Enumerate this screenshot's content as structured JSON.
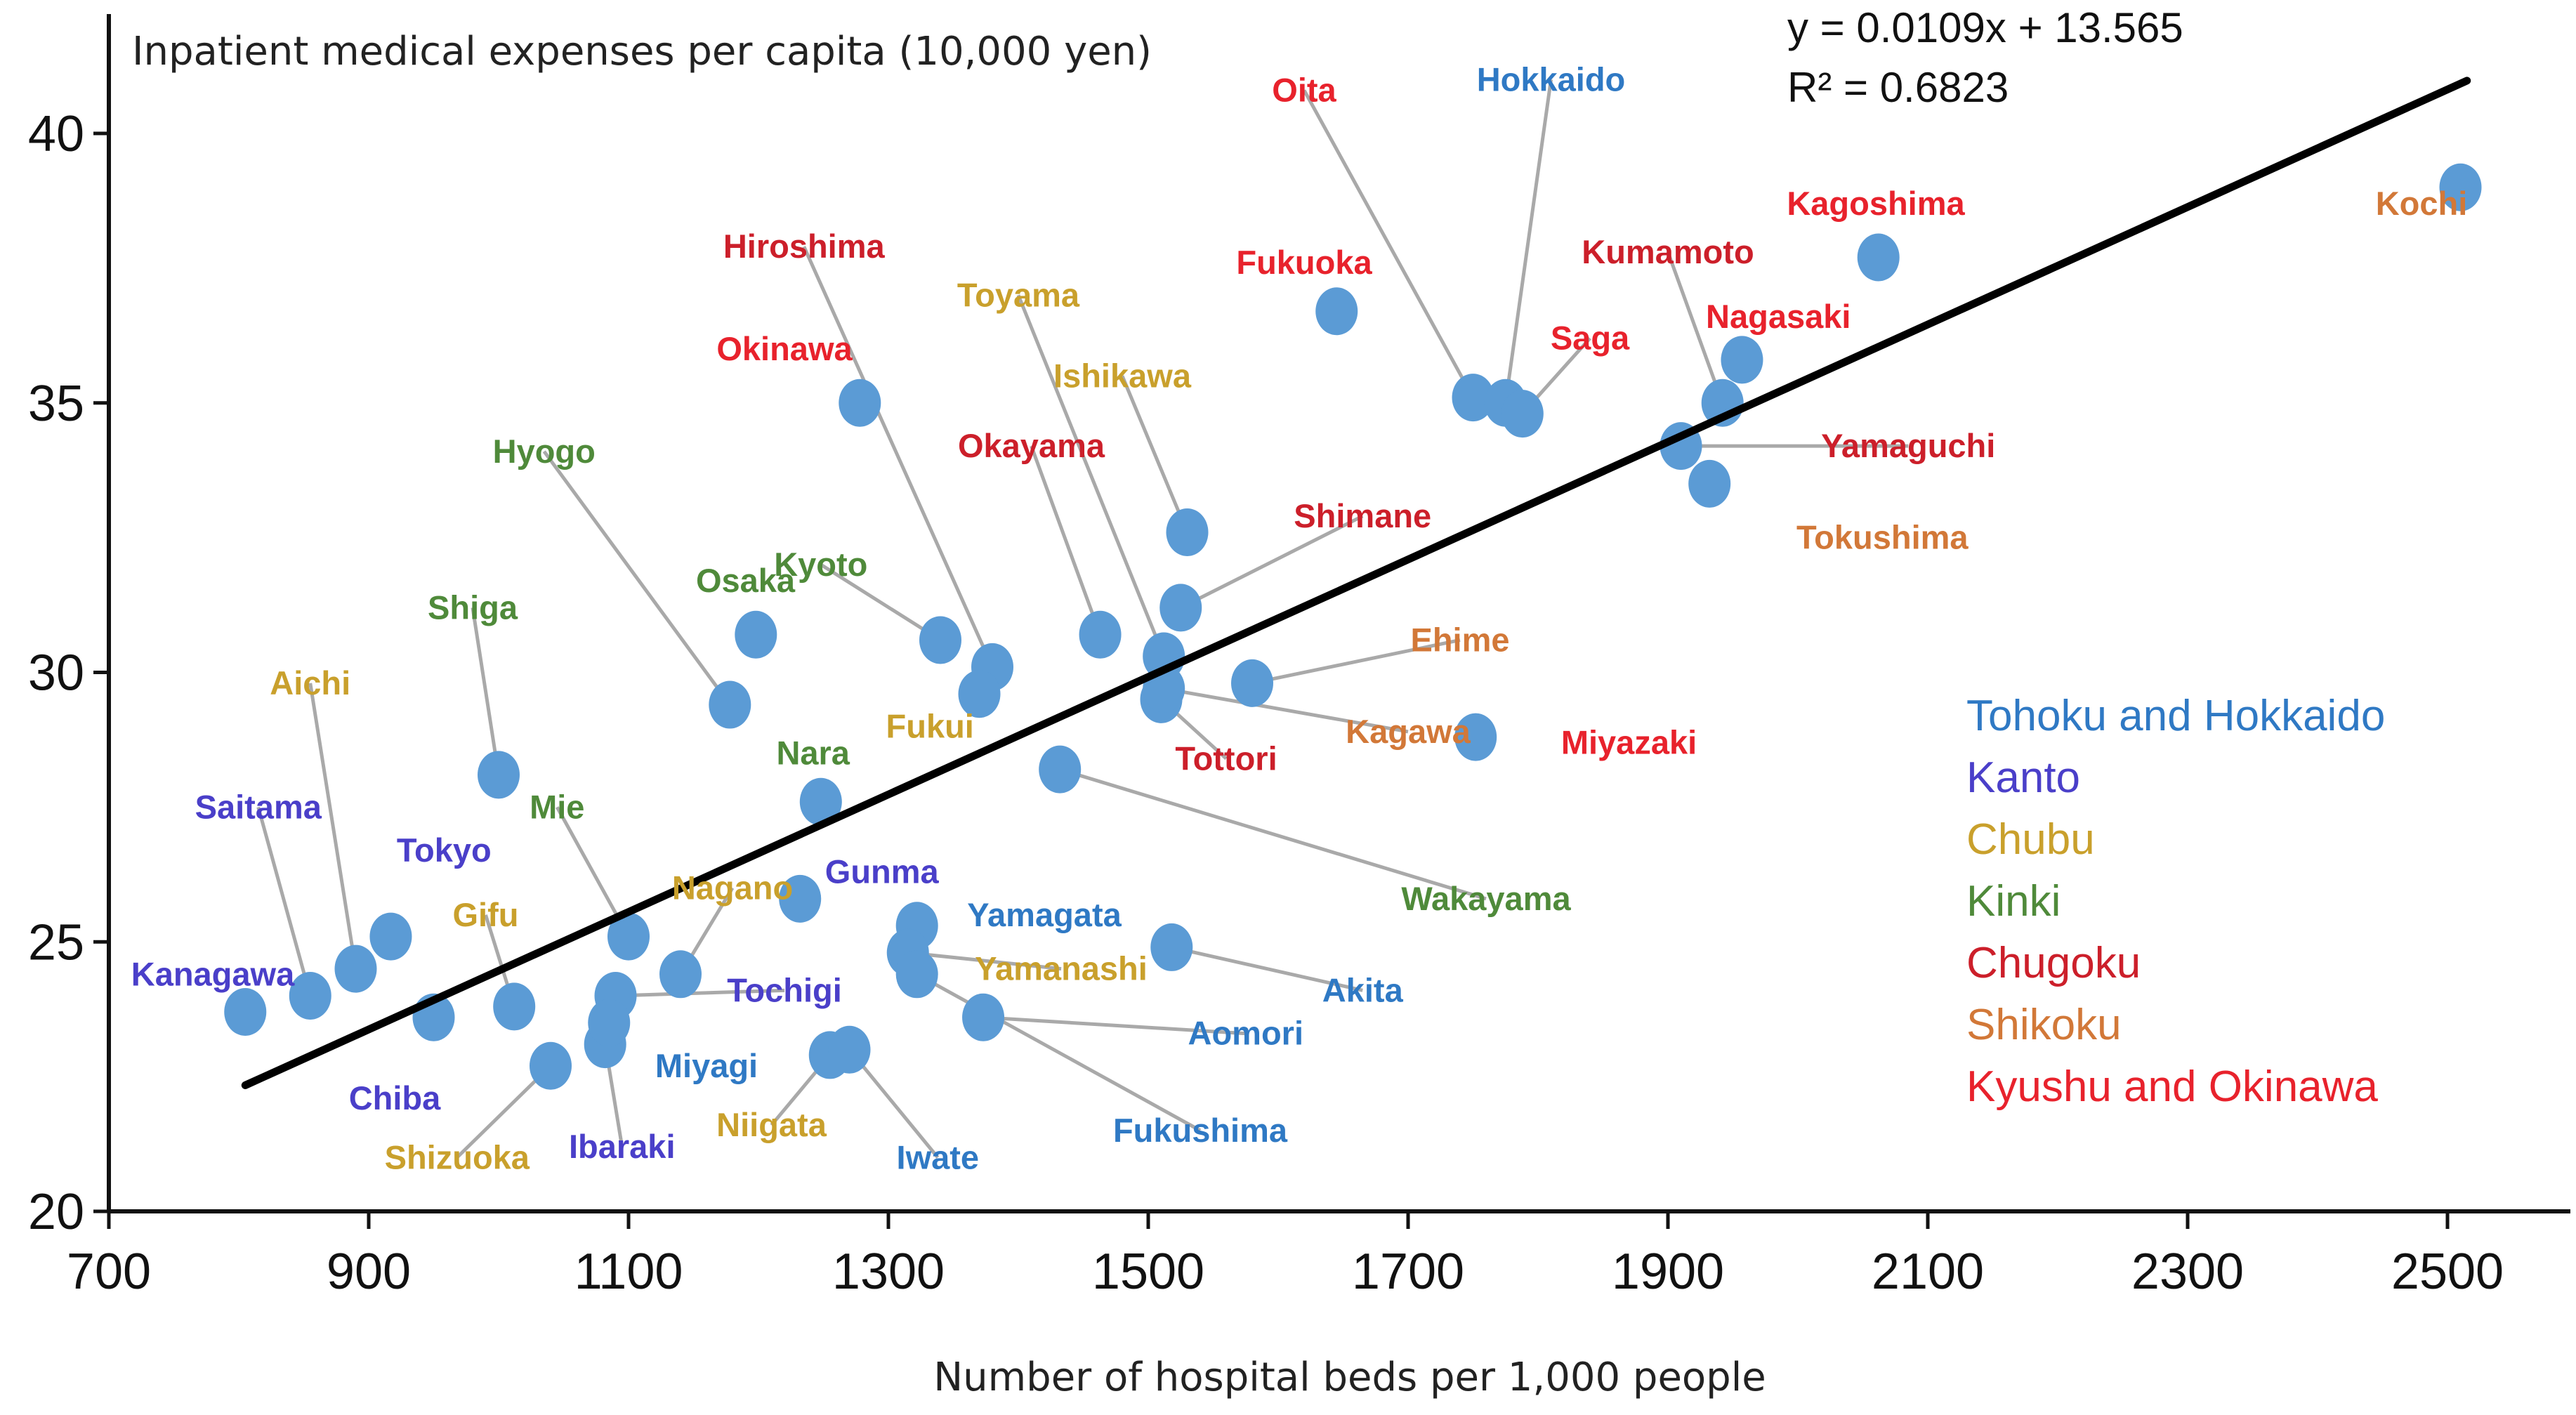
{
  "chart_data": {
    "type": "scatter",
    "title": "",
    "ylabel": "Inpatient medical expenses per capita (10,000 yen)",
    "xlabel": "Number of hospital beds per 1,000 people",
    "xlim": [
      700,
      2540
    ],
    "ylim": [
      20,
      42
    ],
    "xticks": [
      "700",
      "900",
      "1100",
      "1300",
      "1500",
      "1700",
      "1900",
      "2100",
      "2300",
      "2500"
    ],
    "yticks": [
      "20",
      "25",
      "30",
      "35",
      "40"
    ],
    "trendline": {
      "equation": "y = 0.0109x + 13.565",
      "r2": "R² = 0.6823",
      "slope": 0.0109,
      "intercept": 13.565,
      "x_range": [
        805,
        2515
      ]
    },
    "regions": [
      {
        "key": "tohoku",
        "name": "Tohoku and Hokkaido",
        "color": "#2f79c4"
      },
      {
        "key": "kanto",
        "name": "Kanto",
        "color": "#4a3fc9"
      },
      {
        "key": "chubu",
        "name": "Chubu",
        "color": "#c9a02c"
      },
      {
        "key": "kinki",
        "name": "Kinki",
        "color": "#4f8a3a"
      },
      {
        "key": "chugoku",
        "name": "Chugoku",
        "color": "#cc1f2a"
      },
      {
        "key": "shikoku",
        "name": "Shikoku",
        "color": "#d27838"
      },
      {
        "key": "kyushu",
        "name": "Kyushu and Okinawa",
        "color": "#e8222c"
      }
    ],
    "point_color": "#5b9bd5",
    "points": [
      {
        "name": "Kochi",
        "region": "shikoku",
        "x": 2510,
        "y": 39.0,
        "lx": 2480,
        "ly": 38.7
      },
      {
        "name": "Kagoshima",
        "region": "kyushu",
        "x": 2062,
        "y": 37.7,
        "lx": 2060,
        "ly": 38.7
      },
      {
        "name": "Fukuoka",
        "region": "kyushu",
        "x": 1645,
        "y": 36.7,
        "lx": 1620,
        "ly": 37.6
      },
      {
        "name": "Oita",
        "region": "kyushu",
        "x": 1750,
        "y": 35.1,
        "lx": 1620,
        "ly": 40.8,
        "leader": true
      },
      {
        "name": "Hokkaido",
        "region": "tohoku",
        "x": 1775,
        "y": 35.0,
        "lx": 1810,
        "ly": 41.0,
        "leader": true
      },
      {
        "name": "Saga",
        "region": "kyushu",
        "x": 1788,
        "y": 34.8,
        "lx": 1840,
        "ly": 36.2,
        "leader": true
      },
      {
        "name": "Kumamoto",
        "region": "chugoku",
        "x": 1942,
        "y": 35.0,
        "lx": 1900,
        "ly": 37.8,
        "leader": true
      },
      {
        "name": "Nagasaki",
        "region": "kyushu",
        "x": 1957,
        "y": 35.8,
        "lx": 1985,
        "ly": 36.6
      },
      {
        "name": "Yamaguchi",
        "region": "chugoku",
        "x": 1910,
        "y": 34.2,
        "lx": 2085,
        "ly": 34.2,
        "leader": true
      },
      {
        "name": "Tokushima",
        "region": "shikoku",
        "x": 1932,
        "y": 33.5,
        "lx": 2065,
        "ly": 32.5
      },
      {
        "name": "Okinawa",
        "region": "kyushu",
        "x": 1278,
        "y": 35.0,
        "lx": 1220,
        "ly": 36.0
      },
      {
        "name": "Ishikawa",
        "region": "chubu",
        "x": 1530,
        "y": 32.6,
        "lx": 1480,
        "ly": 35.5,
        "leader": true
      },
      {
        "name": "Shimane",
        "region": "chugoku",
        "x": 1525,
        "y": 31.2,
        "lx": 1665,
        "ly": 32.9,
        "leader": true
      },
      {
        "name": "Toyama",
        "region": "chubu",
        "x": 1512,
        "y": 30.3,
        "lx": 1400,
        "ly": 37.0,
        "leader": true
      },
      {
        "name": "Okayama",
        "region": "chugoku",
        "x": 1463,
        "y": 30.7,
        "lx": 1410,
        "ly": 34.2,
        "leader": true
      },
      {
        "name": "Ehime",
        "region": "shikoku",
        "x": 1580,
        "y": 29.8,
        "lx": 1740,
        "ly": 30.6,
        "leader": true
      },
      {
        "name": "Tottori",
        "region": "chugoku",
        "x": 1510,
        "y": 29.5,
        "lx": 1560,
        "ly": 28.4,
        "leader": true
      },
      {
        "name": "Kagawa",
        "region": "shikoku",
        "x": 1512,
        "y": 29.7,
        "lx": 1700,
        "ly": 28.9,
        "leader": true
      },
      {
        "name": "Miyazaki",
        "region": "kyushu",
        "x": 1752,
        "y": 28.8,
        "lx": 1870,
        "ly": 28.7
      },
      {
        "name": "Hiroshima",
        "region": "chugoku",
        "x": 1380,
        "y": 30.1,
        "lx": 1235,
        "ly": 37.9,
        "leader": true
      },
      {
        "name": "Kyoto",
        "region": "kinki",
        "x": 1340,
        "y": 30.6,
        "lx": 1248,
        "ly": 32.0,
        "leader": true
      },
      {
        "name": "Fukui",
        "region": "chubu",
        "x": 1370,
        "y": 29.6,
        "lx": 1332,
        "ly": 29.0
      },
      {
        "name": "Wakayama",
        "region": "kinki",
        "x": 1432,
        "y": 28.2,
        "lx": 1760,
        "ly": 25.8,
        "leader": true
      },
      {
        "name": "Osaka",
        "region": "kinki",
        "x": 1198,
        "y": 30.7,
        "lx": 1190,
        "ly": 31.7
      },
      {
        "name": "Hyogo",
        "region": "kinki",
        "x": 1178,
        "y": 29.4,
        "lx": 1035,
        "ly": 34.1,
        "leader": true
      },
      {
        "name": "Nara",
        "region": "kinki",
        "x": 1248,
        "y": 27.6,
        "lx": 1242,
        "ly": 28.5
      },
      {
        "name": "Shiga",
        "region": "kinki",
        "x": 1000,
        "y": 28.1,
        "lx": 980,
        "ly": 31.2,
        "leader": true
      },
      {
        "name": "Aichi",
        "region": "chubu",
        "x": 890,
        "y": 24.5,
        "lx": 855,
        "ly": 29.8,
        "leader": true
      },
      {
        "name": "Saitama",
        "region": "kanto",
        "x": 855,
        "y": 24.0,
        "lx": 815,
        "ly": 27.5,
        "leader": true
      },
      {
        "name": "Tokyo",
        "region": "kanto",
        "x": 917,
        "y": 25.1,
        "lx": 958,
        "ly": 26.7
      },
      {
        "name": "Kanagawa",
        "region": "kanto",
        "x": 805,
        "y": 23.7,
        "lx": 780,
        "ly": 24.4
      },
      {
        "name": "Chiba",
        "region": "kanto",
        "x": 950,
        "y": 23.6,
        "lx": 920,
        "ly": 22.1
      },
      {
        "name": "Gifu",
        "region": "chubu",
        "x": 1012,
        "y": 23.8,
        "lx": 990,
        "ly": 25.5,
        "leader": true
      },
      {
        "name": "Shizuoka",
        "region": "chubu",
        "x": 1040,
        "y": 22.7,
        "lx": 968,
        "ly": 21.0,
        "leader": true
      },
      {
        "name": "Ibaraki",
        "region": "kanto",
        "x": 1082,
        "y": 23.1,
        "lx": 1095,
        "ly": 21.2,
        "leader": true
      },
      {
        "name": "Mie",
        "region": "kinki",
        "x": 1100,
        "y": 25.1,
        "lx": 1045,
        "ly": 27.5,
        "leader": true
      },
      {
        "name": "Nagano",
        "region": "chubu",
        "x": 1140,
        "y": 24.4,
        "lx": 1180,
        "ly": 26.0,
        "leader": true
      },
      {
        "name": "Tochigi",
        "region": "kanto",
        "x": 1090,
        "y": 24.0,
        "lx": 1220,
        "ly": 24.1,
        "leader": true
      },
      {
        "name": "Miyagi",
        "region": "tohoku",
        "x": 1085,
        "y": 23.5,
        "lx": 1160,
        "ly": 22.7
      },
      {
        "name": "Gunma",
        "region": "kanto",
        "x": 1232,
        "y": 25.8,
        "lx": 1295,
        "ly": 26.3
      },
      {
        "name": "Niigata",
        "region": "chubu",
        "x": 1255,
        "y": 22.9,
        "lx": 1210,
        "ly": 21.6,
        "leader": true
      },
      {
        "name": "Iwate",
        "region": "tohoku",
        "x": 1270,
        "y": 23.0,
        "lx": 1338,
        "ly": 21.0,
        "leader": true
      },
      {
        "name": "Yamagata",
        "region": "tohoku",
        "x": 1322,
        "y": 25.3,
        "lx": 1420,
        "ly": 25.5
      },
      {
        "name": "Yamanashi",
        "region": "chubu",
        "x": 1315,
        "y": 24.8,
        "lx": 1433,
        "ly": 24.5,
        "leader": true
      },
      {
        "name": "Fukushima",
        "region": "tohoku",
        "x": 1322,
        "y": 24.4,
        "lx": 1540,
        "ly": 21.5,
        "leader": true
      },
      {
        "name": "Aomori",
        "region": "tohoku",
        "x": 1373,
        "y": 23.6,
        "lx": 1575,
        "ly": 23.3,
        "leader": true
      },
      {
        "name": "Akita",
        "region": "tohoku",
        "x": 1518,
        "y": 24.9,
        "lx": 1665,
        "ly": 24.1,
        "leader": true
      }
    ]
  }
}
